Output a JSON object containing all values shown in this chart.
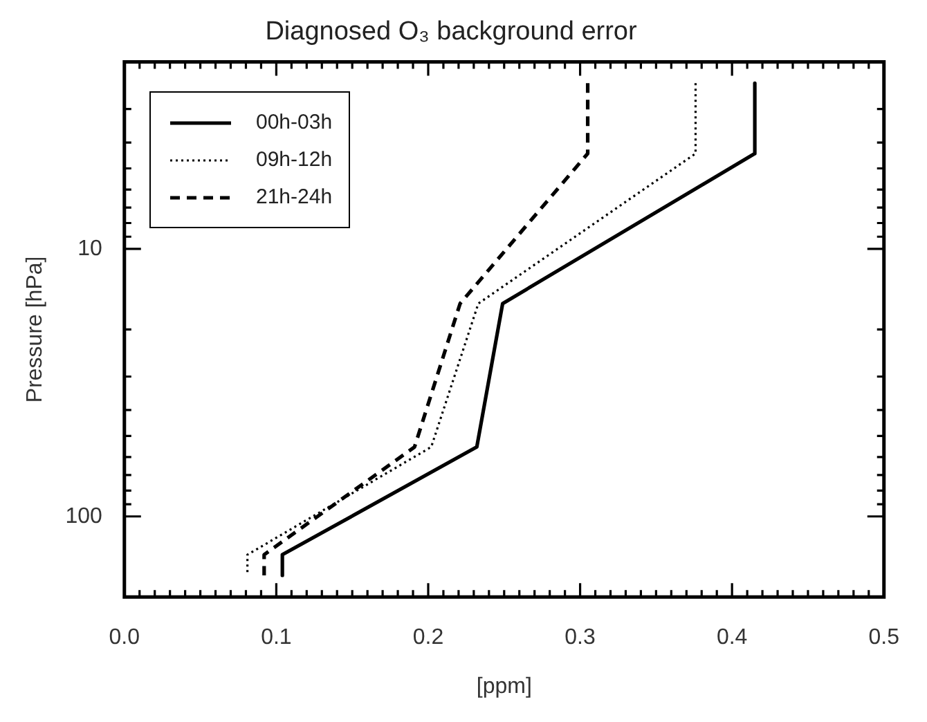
{
  "chart_data": {
    "type": "line",
    "title": "Diagnosed O₃ background error",
    "xlabel": "[ppm]",
    "ylabel": "Pressure [hPa]",
    "series": [
      {
        "name": "00h-03h",
        "color": "#000000",
        "line_style": "solid",
        "x": [
          0.415,
          0.415,
          0.249,
          0.232,
          0.104,
          0.104
        ],
        "values": [
          2.4,
          4.4,
          16,
          55,
          139,
          166
        ]
      },
      {
        "name": "09h-12h",
        "color": "#000000",
        "line_style": "dotted",
        "x": [
          0.376,
          0.376,
          0.233,
          0.202,
          0.081,
          0.081
        ],
        "values": [
          2.4,
          4.4,
          16,
          55,
          139,
          166
        ]
      },
      {
        "name": "21h-24h",
        "color": "#000000",
        "line_style": "dashed",
        "x": [
          0.305,
          0.305,
          0.221,
          0.191,
          0.092,
          0.092
        ],
        "values": [
          2.4,
          4.4,
          16,
          55,
          139,
          166
        ]
      }
    ],
    "log": "y",
    "xlim": [
      0,
      0.5
    ],
    "ylim": [
      200,
      2
    ],
    "xticks": [
      {
        "value": 0,
        "label": "0.0"
      },
      {
        "value": 0.01,
        "label": null
      },
      {
        "value": 0.02,
        "label": null
      },
      {
        "value": 0.03,
        "label": null
      },
      {
        "value": 0.04,
        "label": null
      },
      {
        "value": 0.05,
        "label": null
      },
      {
        "value": 0.06,
        "label": null
      },
      {
        "value": 0.07,
        "label": null
      },
      {
        "value": 0.08,
        "label": null
      },
      {
        "value": 0.09,
        "label": null
      },
      {
        "value": 0.1,
        "label": "0.1"
      },
      {
        "value": 0.11,
        "label": null
      },
      {
        "value": 0.12,
        "label": null
      },
      {
        "value": 0.13,
        "label": null
      },
      {
        "value": 0.14,
        "label": null
      },
      {
        "value": 0.15,
        "label": null
      },
      {
        "value": 0.16,
        "label": null
      },
      {
        "value": 0.17,
        "label": null
      },
      {
        "value": 0.18,
        "label": null
      },
      {
        "value": 0.19,
        "label": null
      },
      {
        "value": 0.2,
        "label": "0.2"
      },
      {
        "value": 0.21,
        "label": null
      },
      {
        "value": 0.22,
        "label": null
      },
      {
        "value": 0.23,
        "label": null
      },
      {
        "value": 0.24,
        "label": null
      },
      {
        "value": 0.25,
        "label": null
      },
      {
        "value": 0.26,
        "label": null
      },
      {
        "value": 0.27,
        "label": null
      },
      {
        "value": 0.28,
        "label": null
      },
      {
        "value": 0.29,
        "label": null
      },
      {
        "value": 0.3,
        "label": "0.3"
      },
      {
        "value": 0.31,
        "label": null
      },
      {
        "value": 0.32,
        "label": null
      },
      {
        "value": 0.33,
        "label": null
      },
      {
        "value": 0.34,
        "label": null
      },
      {
        "value": 0.35,
        "label": null
      },
      {
        "value": 0.36,
        "label": null
      },
      {
        "value": 0.37,
        "label": null
      },
      {
        "value": 0.38,
        "label": null
      },
      {
        "value": 0.39,
        "label": null
      },
      {
        "value": 0.4,
        "label": "0.4"
      },
      {
        "value": 0.41,
        "label": null
      },
      {
        "value": 0.42,
        "label": null
      },
      {
        "value": 0.43,
        "label": null
      },
      {
        "value": 0.44,
        "label": null
      },
      {
        "value": 0.45,
        "label": null
      },
      {
        "value": 0.46,
        "label": null
      },
      {
        "value": 0.47,
        "label": null
      },
      {
        "value": 0.48,
        "label": null
      },
      {
        "value": 0.49,
        "label": null
      },
      {
        "value": 0.5,
        "label": "0.5"
      }
    ],
    "yticks": [
      {
        "value": 2,
        "label": null
      },
      {
        "value": 3,
        "label": null
      },
      {
        "value": 4,
        "label": null
      },
      {
        "value": 5,
        "label": null
      },
      {
        "value": 6,
        "label": null
      },
      {
        "value": 7,
        "label": null
      },
      {
        "value": 8,
        "label": null
      },
      {
        "value": 9,
        "label": null
      },
      10,
      {
        "value": 20,
        "label": null
      },
      {
        "value": 30,
        "label": null
      },
      {
        "value": 40,
        "label": null
      },
      {
        "value": 50,
        "label": null
      },
      {
        "value": 60,
        "label": null
      },
      {
        "value": 70,
        "label": null
      },
      {
        "value": 80,
        "label": null
      },
      {
        "value": 90,
        "label": null
      },
      100,
      {
        "value": 200,
        "label": null
      }
    ],
    "legend": "top left",
    "grid": false
  }
}
